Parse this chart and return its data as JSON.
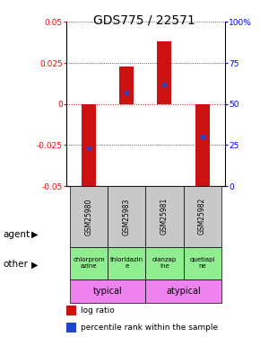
{
  "title": "GDS775 / 22571",
  "samples": [
    "GSM25980",
    "GSM25983",
    "GSM25981",
    "GSM25982"
  ],
  "log_ratios": [
    -0.053,
    0.023,
    0.038,
    -0.052
  ],
  "percentile_ranks": [
    0.23,
    0.57,
    0.62,
    0.3
  ],
  "ylim": [
    -0.05,
    0.05
  ],
  "yticks_left": [
    -0.05,
    -0.025,
    0,
    0.025,
    0.05
  ],
  "yticks_right": [
    0,
    25,
    50,
    75,
    100
  ],
  "agents": [
    "chlorprom\nazine",
    "thioridazin\ne",
    "olanzap\nine",
    "quetiapi\nne"
  ],
  "agent_color": "#90ee90",
  "other_groups": [
    [
      "typical",
      2
    ],
    [
      "atypical",
      2
    ]
  ],
  "other_color": "#ee82ee",
  "bar_color": "#cc1111",
  "blue_color": "#2244cc",
  "zero_line_color": "#cc2222",
  "dot_line_color": "#333333",
  "background_color": "#ffffff",
  "gray_bg": "#c8c8c8",
  "title_fontsize": 10,
  "tick_fontsize": 6.5,
  "sample_fontsize": 5.5,
  "agent_fontsize": 5.0,
  "other_fontsize": 7.0,
  "label_fontsize": 7.5,
  "legend_fontsize": 6.5
}
